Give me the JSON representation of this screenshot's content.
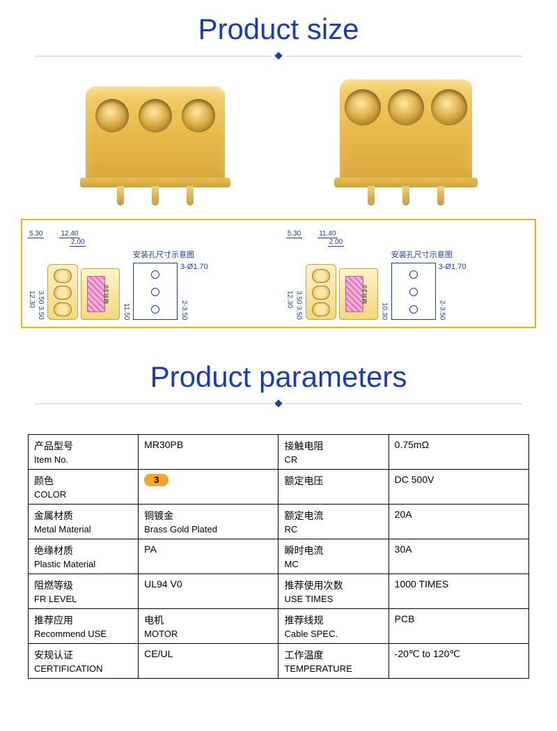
{
  "colors": {
    "title_blue": "#1a3bb5",
    "underline_gray": "#cccccc",
    "diamond_blue": "#1a3bb5",
    "connector_yellow": "#e8b94a",
    "frame_yellow": "#e6b800",
    "dim_blue": "#1a3bb5",
    "badge_orange": "#f5a623",
    "table_border": "#000000",
    "background": "#ffffff"
  },
  "sections": {
    "size_title": "Product size",
    "params_title": "Product parameters"
  },
  "drawings": {
    "left": {
      "w_flange": "5.30",
      "w_body": "12.40",
      "w_inner": "2.00",
      "caption": "安装孔尺寸示意图",
      "holes_label": "3-Ø1.70",
      "h_outer": "12.30",
      "h_inner": "3.50 3.50",
      "side_h": "11.50",
      "hole_pitch_label": "2-3.50",
      "part_mark": "MR30"
    },
    "right": {
      "w_flange": "5.30",
      "w_body": "11.40",
      "w_inner": "2.00",
      "caption": "安装孔尺寸示意图",
      "holes_label": "3-Ø1.70",
      "h_outer": "12.30",
      "h_inner": "3.50 3.50",
      "side_h": "10.30",
      "hole_pitch_label": "2-3.50",
      "part_mark": "MR30"
    }
  },
  "params": {
    "rows": [
      {
        "l_cn": "产品型号",
        "l_en": "Item No.",
        "l_val": "MR30PB",
        "r_cn": "接触电阻",
        "r_en": "CR",
        "r_val": "0.75mΩ"
      },
      {
        "l_cn": "颜色",
        "l_en": "COLOR",
        "l_val_badge": "3",
        "r_cn": "额定电压",
        "r_en": "",
        "r_val": "DC 500V"
      },
      {
        "l_cn": "金属材质",
        "l_en": "Metal Material",
        "l_val_cn": "铜镀金",
        "l_val_en": "Brass Gold Plated",
        "r_cn": "额定电流",
        "r_en": "RC",
        "r_val": "20A"
      },
      {
        "l_cn": "绝缘材质",
        "l_en": "Plastic Material",
        "l_val": "PA",
        "r_cn": "瞬时电流",
        "r_en": "MC",
        "r_val": "30A"
      },
      {
        "l_cn": "阻燃等级",
        "l_en": "FR LEVEL",
        "l_val": "UL94 V0",
        "r_cn": "推荐使用次数",
        "r_en": "USE TIMES",
        "r_val": "1000 TIMES"
      },
      {
        "l_cn": "推荐应用",
        "l_en": "Recommend USE",
        "l_val_cn": "电机",
        "l_val_en": "MOTOR",
        "r_cn": "推荐线规",
        "r_en": "Cable SPEC.",
        "r_val": "PCB"
      },
      {
        "l_cn": "安规认证",
        "l_en": "CERTIFICATION",
        "l_val": "CE/UL",
        "r_cn": "工作温度",
        "r_en": "TEMPERATURE",
        "r_val": "-20℃ to 120℃"
      }
    ]
  }
}
